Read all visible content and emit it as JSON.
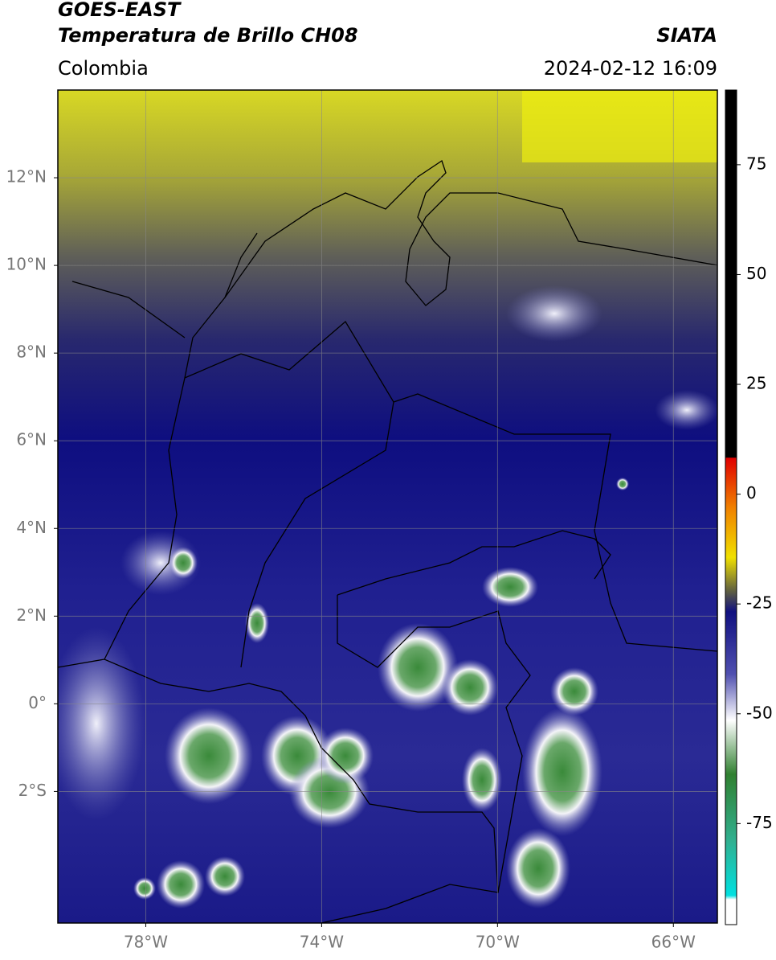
{
  "header": {
    "satellite": "GOES-EAST",
    "product": "Temperatura de Brillo CH08",
    "source": "SIATA",
    "region": "Colombia",
    "timestamp": "2024-02-12 16:09"
  },
  "map": {
    "lon_range": [
      -80,
      -65
    ],
    "lat_range": [
      -5,
      14
    ],
    "lon_ticks": [
      {
        "value": -78,
        "label": "78°W"
      },
      {
        "value": -74,
        "label": "74°W"
      },
      {
        "value": -70,
        "label": "70°W"
      },
      {
        "value": -66,
        "label": "66°W"
      }
    ],
    "lat_ticks": [
      {
        "value": 12,
        "label": "12°N"
      },
      {
        "value": 10,
        "label": "10°N"
      },
      {
        "value": 8,
        "label": "8°N"
      },
      {
        "value": 6,
        "label": "6°N"
      },
      {
        "value": 4,
        "label": "4°N"
      },
      {
        "value": 2,
        "label": "2°N"
      },
      {
        "value": 0,
        "label": "0°"
      },
      {
        "value": -2,
        "label": "2°S"
      }
    ]
  },
  "colorbar": {
    "range": [
      -98,
      92
    ],
    "ticks": [
      75,
      50,
      25,
      0,
      -25,
      -50,
      -75
    ]
  }
}
